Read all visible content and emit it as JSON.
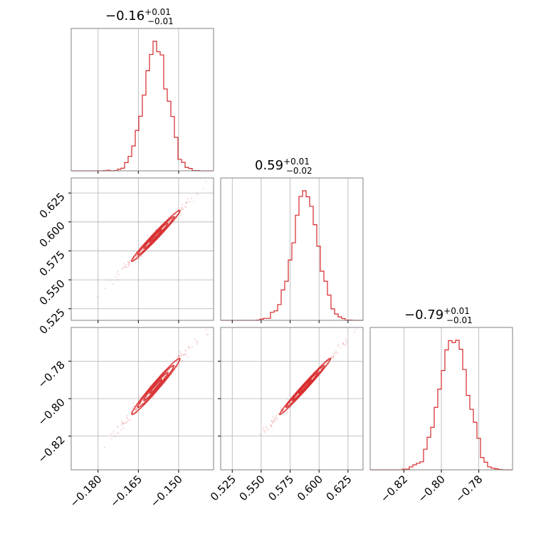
{
  "chart_data": {
    "type": "corner",
    "color": "#d62728",
    "parameters": [
      {
        "title": {
          "median": "−0.16",
          "plus": "+0.01",
          "minus": "−0.01"
        },
        "range": [
          -0.19,
          -0.137
        ],
        "ticks": [
          -0.18,
          -0.165,
          -0.15
        ],
        "tick_labels": [
          "−0.180",
          "−0.165",
          "−0.150"
        ],
        "mean": -0.1585,
        "sd": 0.0045
      },
      {
        "title": {
          "median": "0.59",
          "plus": "+0.01",
          "minus": "−0.02"
        },
        "range": [
          0.515,
          0.638
        ],
        "ticks": [
          0.525,
          0.55,
          0.575,
          0.6,
          0.625
        ],
        "tick_labels": [
          "0.525",
          "0.550",
          "0.575",
          "0.600",
          "0.625"
        ],
        "mean": 0.588,
        "sd": 0.011
      },
      {
        "title": {
          "median": "−0.79",
          "plus": "+0.01",
          "minus": "−0.01"
        },
        "range": [
          -0.838,
          -0.762
        ],
        "ticks": [
          -0.82,
          -0.8,
          -0.78
        ],
        "tick_labels": [
          "−0.82",
          "−0.80",
          "−0.78"
        ],
        "mean": -0.7935,
        "sd": 0.0075
      }
    ],
    "correlations": {
      "1-0": 0.985,
      "2-0": 0.98,
      "2-1": 0.99
    },
    "grid": true,
    "bins": 40
  }
}
